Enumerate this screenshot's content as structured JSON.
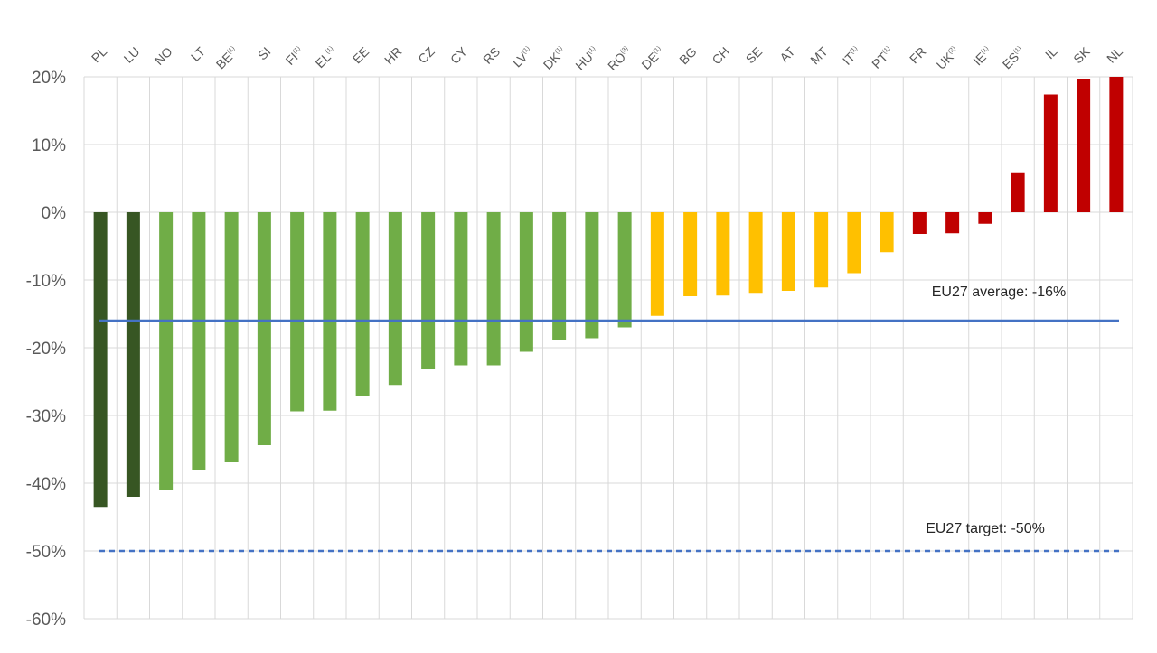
{
  "chart_data": {
    "type": "bar",
    "categories": [
      "PL",
      "LU",
      "NO",
      "LT",
      "BE",
      "SI",
      "FI",
      "EL",
      "EE",
      "HR",
      "CZ",
      "CY",
      "RS",
      "LV",
      "DK",
      "HU",
      "RO",
      "DE",
      "BG",
      "CH",
      "SE",
      "AT",
      "MT",
      "IT",
      "PT",
      "FR",
      "UK",
      "IE",
      "ES",
      "IL",
      "SK",
      "NL"
    ],
    "superscripts": [
      "",
      "",
      "",
      "",
      "(1)",
      "",
      "(1)",
      "(1)",
      "",
      "",
      "",
      "",
      "",
      "(1)",
      "(1)",
      "(1)",
      "(3)",
      "(1)",
      "",
      "",
      "",
      "",
      "",
      "(1)",
      "(1)",
      "",
      "(2)",
      "(1)",
      "(1)",
      "",
      "",
      ""
    ],
    "values": [
      -43.5,
      -42,
      -41,
      -38,
      -36.8,
      -34.4,
      -29.4,
      -29.3,
      -27.1,
      -25.5,
      -23.2,
      -22.6,
      -22.6,
      -20.6,
      -18.8,
      -18.6,
      -17.0,
      -15.3,
      -12.4,
      -12.3,
      -11.9,
      -11.6,
      -11.1,
      -9.0,
      -5.9,
      -3.2,
      -3.1,
      -1.7,
      5.9,
      17.4,
      19.7,
      20.0
    ],
    "colors": [
      "#375623",
      "#375623",
      "#70ad47",
      "#70ad47",
      "#70ad47",
      "#70ad47",
      "#70ad47",
      "#70ad47",
      "#70ad47",
      "#70ad47",
      "#70ad47",
      "#70ad47",
      "#70ad47",
      "#70ad47",
      "#70ad47",
      "#70ad47",
      "#70ad47",
      "#ffc000",
      "#ffc000",
      "#ffc000",
      "#ffc000",
      "#ffc000",
      "#ffc000",
      "#ffc000",
      "#ffc000",
      "#c00000",
      "#c00000",
      "#c00000",
      "#c00000",
      "#c00000",
      "#c00000",
      "#c00000"
    ],
    "ylim": [
      -60,
      20
    ],
    "yticks": [
      20,
      10,
      0,
      -10,
      -20,
      -30,
      -40,
      -50,
      -60
    ],
    "ytick_labels": [
      "20%",
      "10%",
      "0%",
      "-10%",
      "-20%",
      "-30%",
      "-40%",
      "-50%",
      "-60%"
    ],
    "grid": true,
    "reference_lines": [
      {
        "value": -16,
        "label": "EU27 average: -16%",
        "style": "solid",
        "color": "#4472c4"
      },
      {
        "value": -50,
        "label": "EU27 target: -50%",
        "style": "dashed",
        "color": "#4472c4"
      }
    ]
  }
}
